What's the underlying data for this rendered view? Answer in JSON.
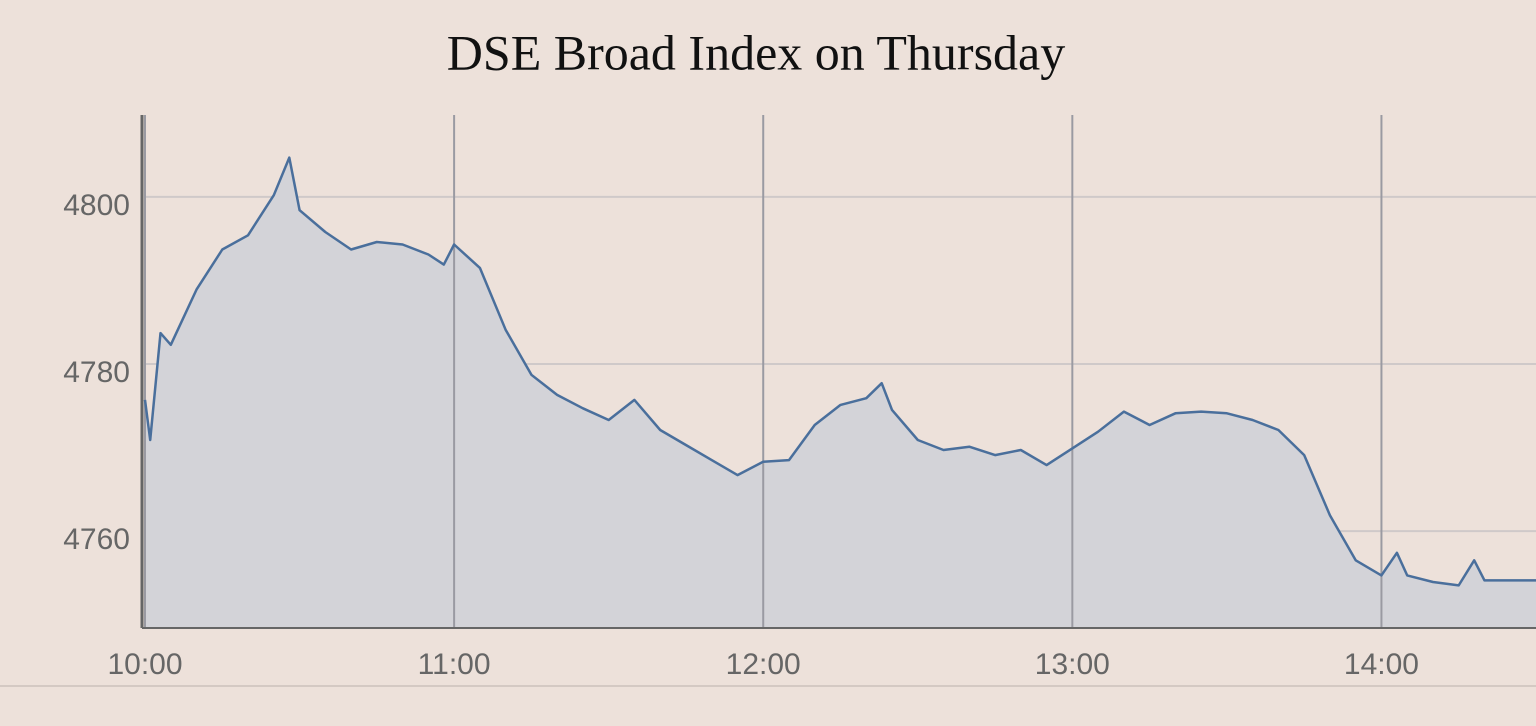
{
  "chart_data": {
    "type": "area",
    "title": "DSE Broad Index on Thursday",
    "x": [
      "10:00",
      "10:01",
      "10:03",
      "10:05",
      "10:10",
      "10:15",
      "10:20",
      "10:25",
      "10:28",
      "10:30",
      "10:35",
      "10:40",
      "10:45",
      "10:50",
      "10:55",
      "10:58",
      "11:00",
      "11:05",
      "11:10",
      "11:15",
      "11:20",
      "11:25",
      "11:30",
      "11:35",
      "11:40",
      "11:45",
      "11:50",
      "11:55",
      "12:00",
      "12:05",
      "12:10",
      "12:15",
      "12:20",
      "12:23",
      "12:25",
      "12:30",
      "12:35",
      "12:40",
      "12:45",
      "12:50",
      "12:55",
      "13:00",
      "13:05",
      "13:10",
      "13:15",
      "13:20",
      "13:25",
      "13:30",
      "13:35",
      "13:40",
      "13:45",
      "13:50",
      "13:55",
      "14:00",
      "14:03",
      "14:05",
      "14:10",
      "14:15",
      "14:18",
      "14:20",
      "14:30"
    ],
    "values": [
      4775.7,
      4770.9,
      4783.7,
      4782.3,
      4788.9,
      4793.7,
      4795.4,
      4800.2,
      4804.7,
      4798.4,
      4795.8,
      4793.7,
      4794.6,
      4794.3,
      4793.1,
      4791.9,
      4794.3,
      4791.5,
      4784.1,
      4778.7,
      4776.3,
      4774.7,
      4773.3,
      4775.7,
      4772.1,
      4770.3,
      4768.5,
      4766.7,
      4768.3,
      4768.5,
      4772.7,
      4775.1,
      4775.9,
      4777.7,
      4774.5,
      4770.9,
      4769.7,
      4770.1,
      4769.1,
      4769.7,
      4767.9,
      4769.9,
      4771.9,
      4774.3,
      4772.7,
      4774.1,
      4774.3,
      4774.1,
      4773.3,
      4772.1,
      4769.1,
      4761.9,
      4756.5,
      4754.7,
      4757.4,
      4754.7,
      4753.9,
      4753.5,
      4756.5,
      4754.1,
      4754.1
    ],
    "color": "#4a6f9c",
    "fill": "#d3d3d8",
    "xlim": [
      "10:00",
      "14:30"
    ],
    "xticks": [
      "10:00",
      "11:00",
      "12:00",
      "13:00",
      "14:00"
    ],
    "ylim": [
      4748.4,
      4809.8
    ],
    "yticks": [
      4760,
      4780,
      4800
    ],
    "grid": true
  }
}
